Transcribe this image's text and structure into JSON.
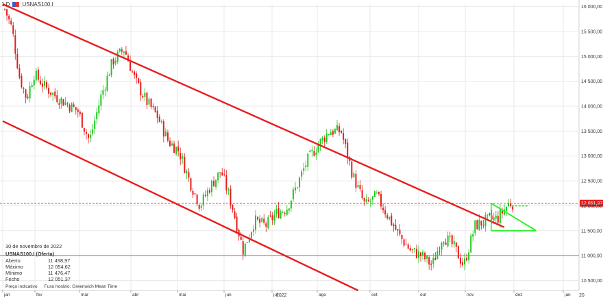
{
  "header": {
    "timeframe": "1 D",
    "symbol": "USNAS100.I"
  },
  "info_panel": {
    "date": "30 de novembro de 2022",
    "instrument": "USNAS100.I (Oferta)",
    "rows": [
      {
        "label": "Aberto",
        "value": "11 498,97"
      },
      {
        "label": "Máximo",
        "value": "12 054,62"
      },
      {
        "label": "Mínimo",
        "value": "11 476,47"
      },
      {
        "label": "Fecho",
        "value": "12 051,37"
      }
    ],
    "footer_left": "Preço indicativo",
    "footer_right": "Fuso horário: Greenwich Mean Time"
  },
  "colors": {
    "up": "#1ec81e",
    "down": "#e81c1c",
    "channel": "#e81c1c",
    "triangle": "#33ee33",
    "h_line": "#6b9bd2",
    "last_price": "#e81c1c",
    "grid": "#eaeaea"
  },
  "chart_data": {
    "type": "candlestick",
    "instrument": "USNAS100.I",
    "interval": "1 D",
    "ylim": [
      10300,
      16050
    ],
    "y_ticks": [
      16000,
      15500,
      15000,
      14500,
      14000,
      13500,
      13000,
      12500,
      12000,
      11500,
      11000,
      10500
    ],
    "y_tick_labels": [
      "16 000,00",
      "15 500,00",
      "15 000,00",
      "14 500,00",
      "14 000,00",
      "13 500,00",
      "13 000,00",
      "12 500,00",
      "12 000,00",
      "11 500,00",
      "11 000,00",
      "10 500,00"
    ],
    "x_month_ticks": [
      {
        "label": "jan",
        "month": 0
      },
      {
        "label": "fev",
        "month": 1
      },
      {
        "label": "mar",
        "month": 2
      },
      {
        "label": "abr",
        "month": 3
      },
      {
        "label": "mai",
        "month": 4
      },
      {
        "label": "jun",
        "month": 5
      },
      {
        "label": "jul",
        "month": 6
      },
      {
        "label": "ago",
        "month": 7
      },
      {
        "label": "set",
        "month": 8
      },
      {
        "label": "out",
        "month": 9
      },
      {
        "label": "nov",
        "month": 10
      },
      {
        "label": "dez",
        "month": 11
      },
      {
        "label": "jan",
        "month": 12
      }
    ],
    "year_label": "2022",
    "year_label_right": "20",
    "last_price": 12051.37,
    "last_price_label": "12 051,37",
    "horizontal_line": 11000,
    "closes_weekly": [
      {
        "date": "2022-01-03",
        "close": 15950
      },
      {
        "date": "2022-01-10",
        "close": 15550
      },
      {
        "date": "2022-01-17",
        "close": 14600
      },
      {
        "date": "2022-01-24",
        "close": 14150
      },
      {
        "date": "2022-01-31",
        "close": 14650
      },
      {
        "date": "2022-02-07",
        "close": 14400
      },
      {
        "date": "2022-02-14",
        "close": 14200
      },
      {
        "date": "2022-02-21",
        "close": 14050
      },
      {
        "date": "2022-02-28",
        "close": 13900
      },
      {
        "date": "2022-03-07",
        "close": 13300
      },
      {
        "date": "2022-03-14",
        "close": 14200
      },
      {
        "date": "2022-03-21",
        "close": 14900
      },
      {
        "date": "2022-03-28",
        "close": 15150
      },
      {
        "date": "2022-04-04",
        "close": 14500
      },
      {
        "date": "2022-04-11",
        "close": 14100
      },
      {
        "date": "2022-04-18",
        "close": 13800
      },
      {
        "date": "2022-04-25",
        "close": 13300
      },
      {
        "date": "2022-05-02",
        "close": 13100
      },
      {
        "date": "2022-05-09",
        "close": 12500
      },
      {
        "date": "2022-05-16",
        "close": 12000
      },
      {
        "date": "2022-05-23",
        "close": 12400
      },
      {
        "date": "2022-05-30",
        "close": 12700
      },
      {
        "date": "2022-06-06",
        "close": 12000
      },
      {
        "date": "2022-06-13",
        "close": 11100
      },
      {
        "date": "2022-06-20",
        "close": 11700
      },
      {
        "date": "2022-06-27",
        "close": 11600
      },
      {
        "date": "2022-07-04",
        "close": 11850
      },
      {
        "date": "2022-07-11",
        "close": 11950
      },
      {
        "date": "2022-07-18",
        "close": 12400
      },
      {
        "date": "2022-07-25",
        "close": 12900
      },
      {
        "date": "2022-08-01",
        "close": 13200
      },
      {
        "date": "2022-08-08",
        "close": 13500
      },
      {
        "date": "2022-08-15",
        "close": 13500
      },
      {
        "date": "2022-08-22",
        "close": 12600
      },
      {
        "date": "2022-08-29",
        "close": 12000
      },
      {
        "date": "2022-09-05",
        "close": 12200
      },
      {
        "date": "2022-09-12",
        "close": 11800
      },
      {
        "date": "2022-09-19",
        "close": 11400
      },
      {
        "date": "2022-09-26",
        "close": 11100
      },
      {
        "date": "2022-10-03",
        "close": 11000
      },
      {
        "date": "2022-10-10",
        "close": 10800
      },
      {
        "date": "2022-10-17",
        "close": 11400
      },
      {
        "date": "2022-10-24",
        "close": 11200
      },
      {
        "date": "2022-10-31",
        "close": 10800
      },
      {
        "date": "2022-11-07",
        "close": 11600
      },
      {
        "date": "2022-11-14",
        "close": 11700
      },
      {
        "date": "2022-11-21",
        "close": 11750
      },
      {
        "date": "2022-11-28",
        "close": 12051
      }
    ],
    "channel_lines": [
      {
        "from": {
          "date": "2022-01-01",
          "value": 16050
        },
        "to": {
          "date": "2022-11-25",
          "value": 11570
        }
      },
      {
        "from": {
          "date": "2022-01-01",
          "value": 13700
        },
        "to": {
          "date": "2022-08-25",
          "value": 10300
        }
      }
    ],
    "triangle_pattern": {
      "apex": {
        "date": "2022-12-15",
        "value": 11500
      },
      "upper_start": {
        "date": "2022-11-17",
        "value": 12050
      },
      "base_start": {
        "date": "2022-11-17",
        "value": 11500
      },
      "breakout_level": 12000,
      "breakout_end_date": "2022-12-10"
    }
  }
}
